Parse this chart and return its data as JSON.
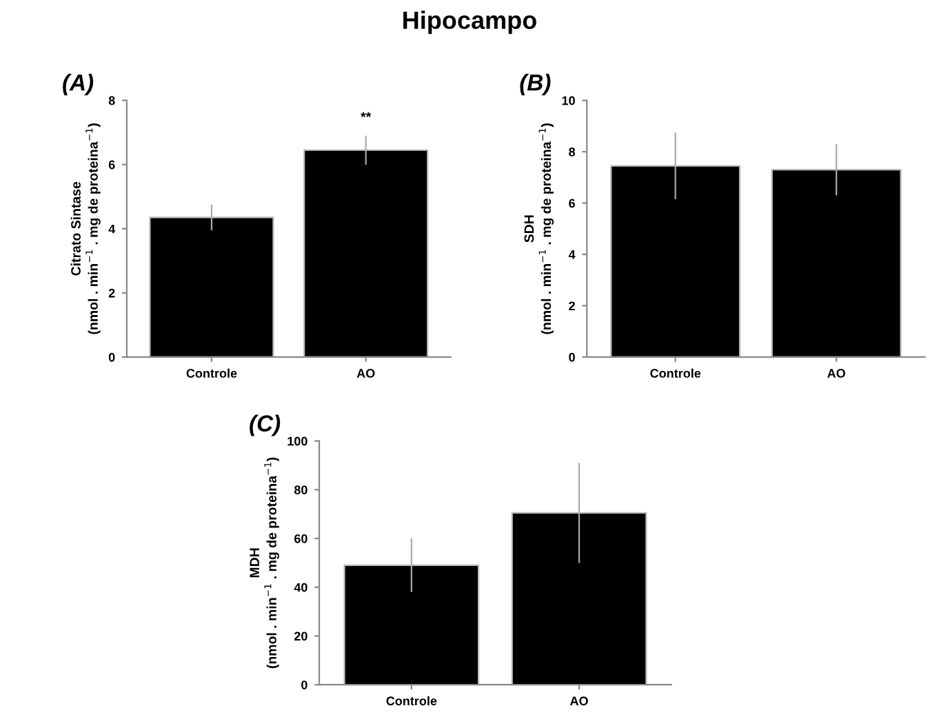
{
  "chart_data": [
    {
      "type": "bar",
      "title": "(A)",
      "annotations": [
        "Hipocampo",
        {
          "text": "**",
          "x": "AO",
          "y": 6.9
        }
      ],
      "ylabel": "Citrato Sintase\n(nmol . min$^{−1}$ . mg de proteina$^{−1}$)",
      "categories": [
        "Controle",
        "AO"
      ],
      "values": [
        4.35,
        6.45
      ],
      "errors": [
        0.4,
        0.45
      ],
      "color": "#000000",
      "ylim": [
        0,
        8
      ],
      "yticks": [
        0,
        2,
        4,
        6,
        8
      ],
      "grid": false,
      "legend": false
    },
    {
      "type": "bar",
      "title": "(B)",
      "ylabel": "SDH\n(nmol . min$^{−1}$ . mg de proteina$^{−1}$)",
      "categories": [
        "Controle",
        "AO"
      ],
      "values": [
        7.45,
        7.3
      ],
      "errors": [
        1.3,
        1.0
      ],
      "color": "#000000",
      "ylim": [
        0,
        10
      ],
      "yticks": [
        0,
        2,
        4,
        6,
        8,
        10
      ],
      "grid": false,
      "legend": false
    },
    {
      "type": "bar",
      "title": "(C)",
      "ylabel": "MDH\n(nmol . min$^{−1}$ . mg de proteina$^{−1}$)",
      "categories": [
        "Controle",
        "AO"
      ],
      "values": [
        49,
        70.5
      ],
      "errors": [
        11,
        20.5
      ],
      "color": "#000000",
      "ylim": [
        0,
        100
      ],
      "yticks": [
        0,
        20,
        40,
        60,
        80,
        100
      ],
      "grid": false,
      "legend": false
    }
  ]
}
